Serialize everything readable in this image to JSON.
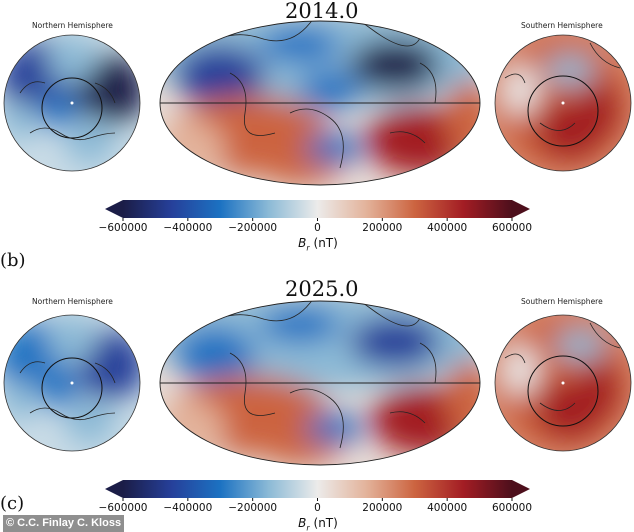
{
  "panels": [
    {
      "title": "2014.0",
      "north_label": "Northern Hemisphere",
      "south_label": "Southern Hemisphere"
    },
    {
      "label": "(b)",
      "title": "2025.0",
      "north_label": "Northern Hemisphere",
      "south_label": "Southern Hemisphere"
    }
  ],
  "next_panel_label": "(c)",
  "colorbar": {
    "ticks": [
      "−600000",
      "−400000",
      "−200000",
      "0",
      "200000",
      "400000",
      "600000"
    ],
    "label_symbol": "B",
    "label_sub": "r",
    "label_unit": " (nT)",
    "range": [
      -600000,
      600000
    ],
    "colormap": [
      "#1b1d47",
      "#26409a",
      "#1c72c2",
      "#8cbad6",
      "#ecebea",
      "#e3b39b",
      "#cc6440",
      "#a31d24",
      "#4d0f1c"
    ]
  },
  "watermark": "© C.C. Finlay C. Kloss"
}
